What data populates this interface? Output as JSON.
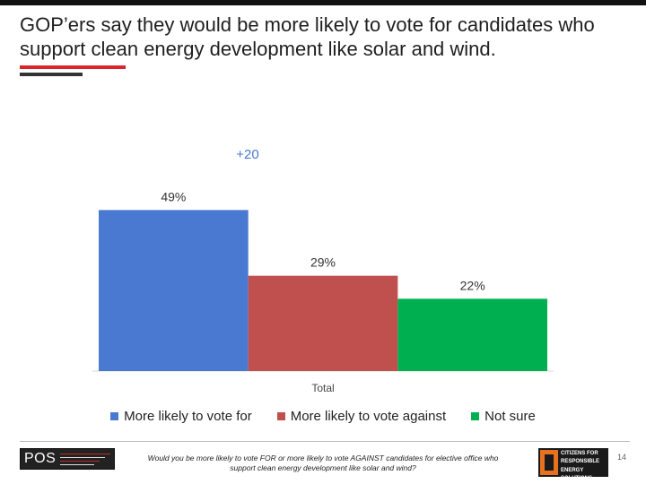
{
  "slide": {
    "title": "GOP’ers say they would be more likely to vote for candidates who support clean energy development like solar and wind.",
    "difference_label": "+20",
    "question": "Would you be more likely to vote FOR or more likely to vote AGAINST candidates for elective office who support clean energy development like solar and wind?",
    "page_number": "14",
    "logo_left": "POS",
    "logo_right": "CITIZENS FOR RESPONSIBLE ENERGY SOLUTIONS"
  },
  "colors": {
    "accent_red": "#d9262c",
    "vote_for": "#4a79d1",
    "vote_against": "#c0504d",
    "not_sure": "#00b050"
  },
  "chart_data": {
    "type": "bar",
    "categories": [
      "Total"
    ],
    "series": [
      {
        "name": "More likely to vote for",
        "values": [
          49
        ],
        "label": "49%",
        "color": "#4a79d1"
      },
      {
        "name": "More likely to vote against",
        "values": [
          29
        ],
        "label": "29%",
        "color": "#c0504d"
      },
      {
        "name": "Not sure",
        "values": [
          22
        ],
        "label": "22%",
        "color": "#00b050"
      }
    ],
    "ylim": [
      0,
      60
    ],
    "grid": false,
    "legend_position": "bottom"
  }
}
